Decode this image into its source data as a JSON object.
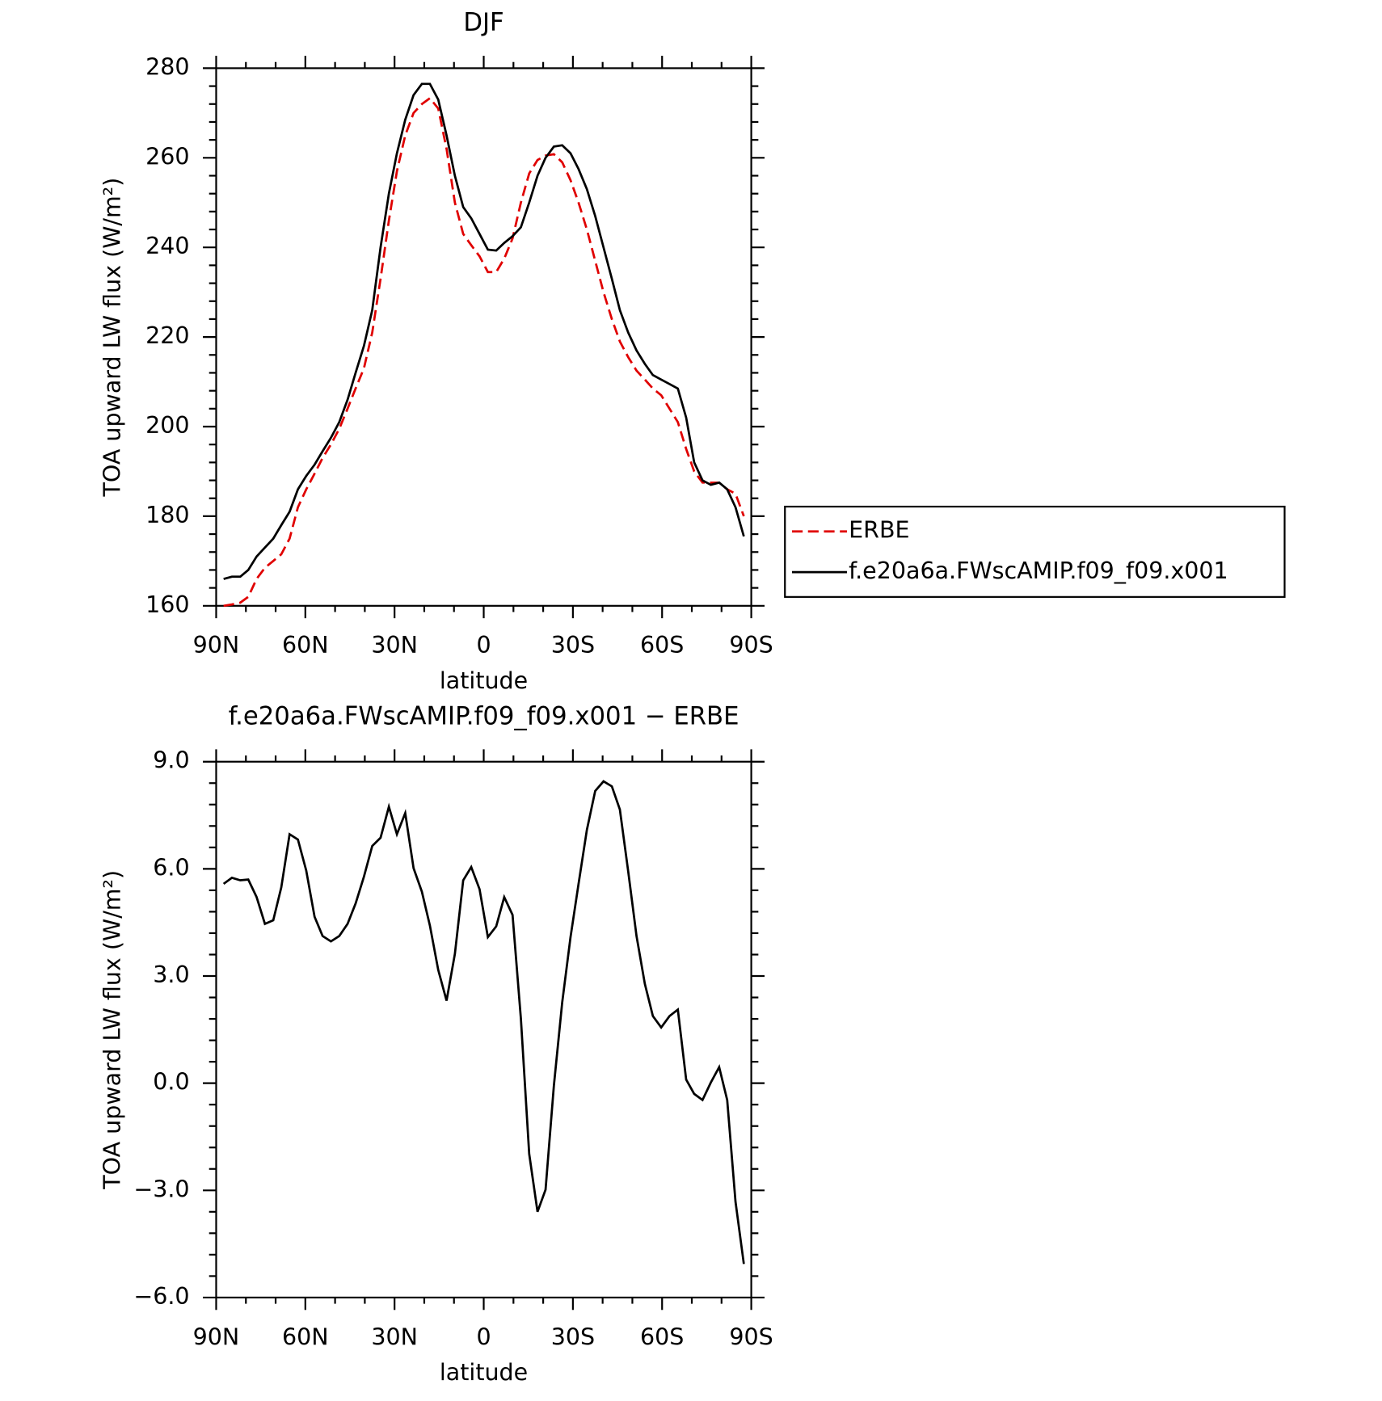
{
  "chart_data": [
    {
      "type": "line",
      "title": "DJF",
      "xlabel": "latitude",
      "ylabel": "TOA upward LW flux (W/m²)",
      "x": [
        87.5,
        84.7,
        81.9,
        79.2,
        76.4,
        73.6,
        70.8,
        68.1,
        65.3,
        62.5,
        59.7,
        56.9,
        54.2,
        51.4,
        48.6,
        45.8,
        43.1,
        40.3,
        37.5,
        34.7,
        31.9,
        29.2,
        26.4,
        23.6,
        20.8,
        18.1,
        15.3,
        12.5,
        9.7,
        6.9,
        4.2,
        1.4,
        -1.4,
        -4.2,
        -6.9,
        -9.7,
        -12.5,
        -15.3,
        -18.1,
        -20.8,
        -23.6,
        -26.4,
        -29.2,
        -31.9,
        -34.7,
        -37.5,
        -40.3,
        -43.1,
        -45.8,
        -48.6,
        -51.4,
        -54.2,
        -56.9,
        -59.7,
        -62.5,
        -65.3,
        -68.1,
        -70.8,
        -73.6,
        -76.4,
        -79.2,
        -81.9,
        -84.7,
        -87.5
      ],
      "series": [
        {
          "name": "ERBE",
          "color": "#e00000",
          "linestyle": "dashed",
          "values": [
            160,
            160.3,
            160.7,
            162,
            166,
            168.5,
            170,
            171.5,
            175,
            182,
            186,
            189.5,
            193,
            196,
            199.5,
            204,
            208.5,
            213,
            221,
            233,
            246,
            257,
            265,
            270,
            272,
            273.3,
            271,
            262,
            250,
            243,
            240.5,
            238,
            234.5,
            234.5,
            237.5,
            242,
            250,
            256.5,
            259.5,
            260.5,
            260.8,
            259,
            255,
            250,
            244,
            237,
            230,
            224,
            219,
            215.5,
            212.5,
            210.5,
            208.5,
            207,
            204,
            201,
            195,
            190,
            187.5,
            187.5,
            187.5,
            186,
            185,
            180
          ]
        },
        {
          "name": "f.e20a6a.FWscAMIP.f09_f09.x001",
          "color": "#000000",
          "linestyle": "solid",
          "values": [
            166,
            166.5,
            166.5,
            168,
            171,
            173,
            175,
            178,
            181,
            186,
            189,
            191.5,
            194.5,
            197.5,
            201,
            206,
            212,
            218,
            226,
            240,
            252,
            261,
            268.5,
            274,
            276.5,
            276.5,
            273,
            265,
            256,
            249,
            246.5,
            243,
            239.5,
            239.3,
            241,
            242.5,
            244.5,
            250,
            256,
            260,
            262.5,
            262.8,
            261,
            257.5,
            253,
            247,
            240,
            233,
            226,
            221,
            217,
            214,
            211.5,
            210.5,
            209.5,
            208.5,
            202,
            192,
            188,
            187,
            187.5,
            186,
            182,
            175.5
          ]
        }
      ],
      "xlim": [
        90,
        -90
      ],
      "xticks": [
        {
          "value": 90,
          "label": "90N"
        },
        {
          "value": 60,
          "label": "60N"
        },
        {
          "value": 30,
          "label": "30N"
        },
        0,
        {
          "value": -30,
          "label": "30S"
        },
        {
          "value": -60,
          "label": "60S"
        },
        {
          "value": -90,
          "label": "90S"
        }
      ],
      "xminorticks": [
        80,
        70,
        50,
        40,
        20,
        10,
        -10,
        -20,
        -40,
        -50,
        -70,
        -80
      ],
      "ylim": [
        160,
        280
      ],
      "yticks": [
        160,
        180,
        200,
        220,
        240,
        260,
        280
      ],
      "yminorticks": [
        164,
        168,
        172,
        176,
        184,
        188,
        192,
        196,
        204,
        208,
        212,
        216,
        224,
        228,
        232,
        236,
        244,
        248,
        252,
        256,
        264,
        268,
        272,
        276
      ],
      "legend": "right"
    },
    {
      "type": "line",
      "title": "f.e20a6a.FWscAMIP.f09_f09.x001 − ERBE",
      "xlabel": "latitude",
      "ylabel": "TOA upward LW flux (W/m²)",
      "x": [
        87.5,
        84.7,
        81.9,
        79.2,
        76.4,
        73.6,
        70.8,
        68.1,
        65.3,
        62.5,
        59.7,
        56.9,
        54.2,
        51.4,
        48.6,
        45.8,
        43.1,
        40.3,
        37.5,
        34.7,
        31.9,
        29.2,
        26.4,
        23.6,
        20.8,
        18.1,
        15.3,
        12.5,
        9.7,
        6.9,
        4.2,
        1.4,
        -1.4,
        -4.2,
        -6.9,
        -9.7,
        -12.5,
        -15.3,
        -18.1,
        -20.8,
        -23.6,
        -26.4,
        -29.2,
        -31.9,
        -34.7,
        -37.5,
        -40.3,
        -43.1,
        -45.8,
        -48.6,
        -51.4,
        -54.2,
        -56.9,
        -59.7,
        -62.5,
        -65.3,
        -68.1,
        -70.8,
        -73.6,
        -76.4,
        -79.2,
        -81.9,
        -84.7,
        -87.5
      ],
      "series": [
        {
          "color": "#000000",
          "linestyle": "solid",
          "values": [
            5.58,
            5.75,
            5.68,
            5.7,
            5.21,
            4.46,
            4.56,
            5.48,
            6.97,
            6.82,
            5.95,
            4.66,
            4.12,
            3.97,
            4.12,
            4.46,
            5.03,
            5.78,
            6.64,
            6.87,
            7.74,
            6.97,
            7.56,
            6.02,
            5.36,
            4.41,
            3.17,
            2.31,
            3.62,
            5.68,
            6.05,
            5.43,
            4.09,
            4.39,
            5.21,
            4.71,
            1.81,
            -1.98,
            -3.6,
            -2.98,
            -0.07,
            2.26,
            4.09,
            5.58,
            7.09,
            8.18,
            8.45,
            8.31,
            7.66,
            5.93,
            4.12,
            2.78,
            1.88,
            1.56,
            1.88,
            2.06,
            0.1,
            -0.3,
            -0.47,
            0.02,
            0.45,
            -0.47,
            -3.32,
            -5.06
          ]
        }
      ],
      "xlim": [
        90,
        -90
      ],
      "xticks": [
        {
          "value": 90,
          "label": "90N"
        },
        {
          "value": 60,
          "label": "60N"
        },
        {
          "value": 30,
          "label": "30N"
        },
        0,
        {
          "value": -30,
          "label": "30S"
        },
        {
          "value": -60,
          "label": "60S"
        },
        {
          "value": -90,
          "label": "90S"
        }
      ],
      "xminorticks": [
        80,
        70,
        50,
        40,
        20,
        10,
        -10,
        -20,
        -40,
        -50,
        -70,
        -80
      ],
      "ylim": [
        -6,
        9
      ],
      "yticks": [
        {
          "value": -6,
          "label": "−6.0"
        },
        {
          "value": -3,
          "label": "−3.0"
        },
        {
          "value": 0,
          "label": "0.0"
        },
        {
          "value": 3,
          "label": "3.0"
        },
        {
          "value": 6,
          "label": "6.0"
        },
        {
          "value": 9,
          "label": "9.0"
        }
      ],
      "yminorticks": [
        -5.4,
        -4.8,
        -4.2,
        -3.6,
        -2.4,
        -1.8,
        -1.2,
        -0.6,
        0.6,
        1.2,
        1.8,
        2.4,
        3.6,
        4.2,
        4.8,
        5.4,
        6.6,
        7.2,
        7.8,
        8.4
      ]
    }
  ]
}
